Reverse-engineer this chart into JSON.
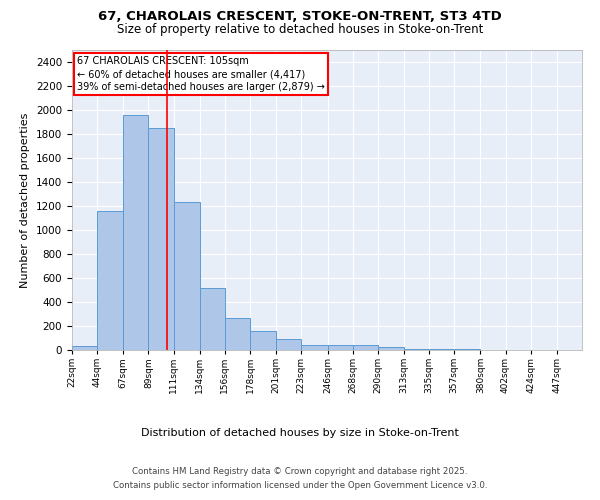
{
  "title_line1": "67, CHAROLAIS CRESCENT, STOKE-ON-TRENT, ST3 4TD",
  "title_line2": "Size of property relative to detached houses in Stoke-on-Trent",
  "xlabel": "Distribution of detached houses by size in Stoke-on-Trent",
  "ylabel": "Number of detached properties",
  "bar_edges": [
    22,
    44,
    67,
    89,
    111,
    134,
    156,
    178,
    201,
    223,
    246,
    268,
    290,
    313,
    335,
    357,
    380,
    402,
    424,
    447,
    469
  ],
  "bar_heights": [
    30,
    1160,
    1960,
    1850,
    1230,
    520,
    270,
    155,
    90,
    45,
    40,
    38,
    22,
    12,
    8,
    5,
    4,
    3,
    2,
    2
  ],
  "bar_color": "#aec6e8",
  "bar_edgecolor": "#5b9bd5",
  "vline_x": 105,
  "vline_color": "red",
  "annotation_title": "67 CHAROLAIS CRESCENT: 105sqm",
  "annotation_line1": "← 60% of detached houses are smaller (4,417)",
  "annotation_line2": "39% of semi-detached houses are larger (2,879) →",
  "annotation_box_color": "white",
  "annotation_box_edgecolor": "red",
  "ylim": [
    0,
    2500
  ],
  "yticks": [
    0,
    200,
    400,
    600,
    800,
    1000,
    1200,
    1400,
    1600,
    1800,
    2000,
    2200,
    2400
  ],
  "background_color": "#e8eef8",
  "grid_color": "white",
  "footer_line1": "Contains HM Land Registry data © Crown copyright and database right 2025.",
  "footer_line2": "Contains public sector information licensed under the Open Government Licence v3.0."
}
